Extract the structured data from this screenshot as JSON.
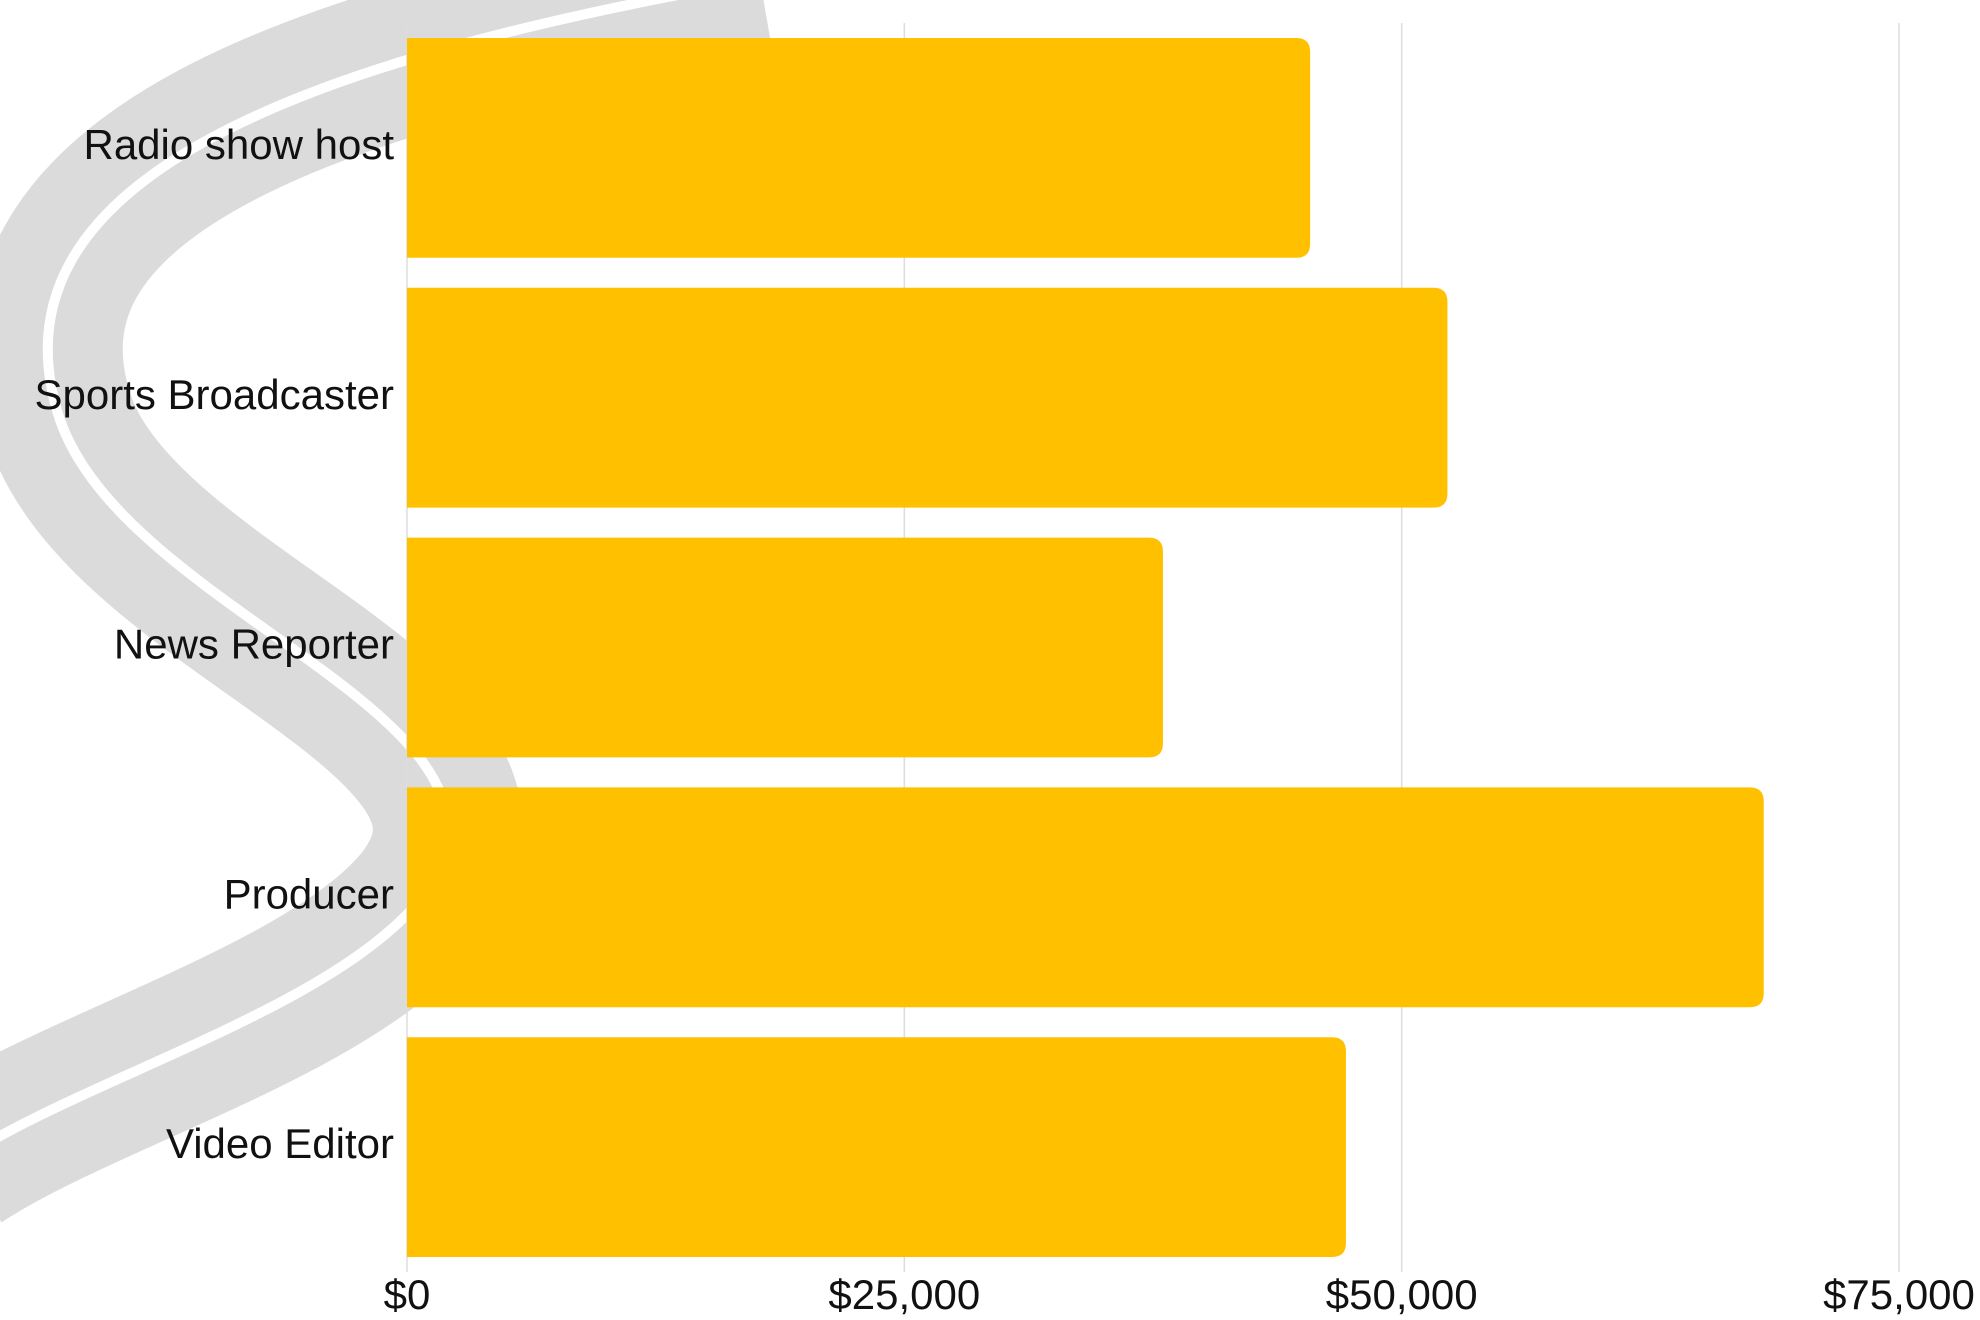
{
  "chart_data": {
    "type": "bar",
    "orientation": "horizontal",
    "categories": [
      "Radio show host",
      "Sports Broadcaster",
      "News Reporter",
      "Producer",
      "Video Editor"
    ],
    "values": [
      45400,
      52300,
      38000,
      68200,
      47200
    ],
    "color": "#ffc000",
    "xlim": [
      0,
      75000
    ],
    "xticks": [
      {
        "value": 0,
        "label": "$0"
      },
      {
        "value": 25000,
        "label": "$25,000"
      },
      {
        "value": 50000,
        "label": "$50,000"
      },
      {
        "value": 75000,
        "label": "$75,000"
      }
    ],
    "grid": true
  }
}
